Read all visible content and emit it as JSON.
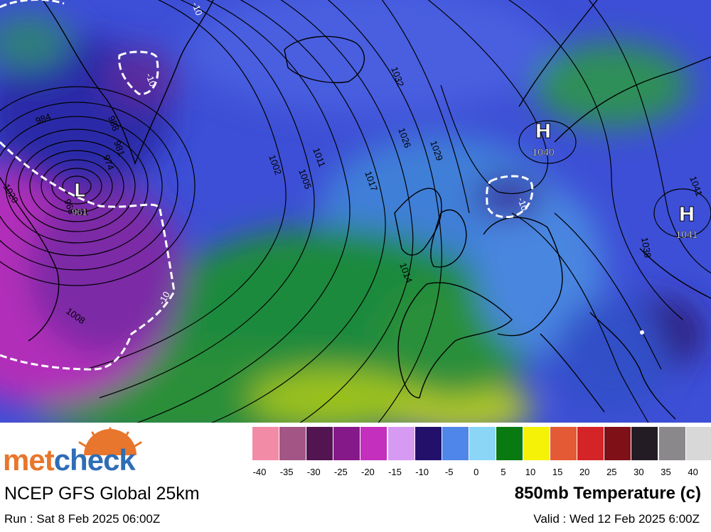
{
  "map": {
    "pressure_centres": [
      {
        "type": "L",
        "value": "961"
      },
      {
        "type": "H",
        "value": "1040"
      },
      {
        "type": "H",
        "value": "1041"
      }
    ],
    "isobar_labels": [
      "984",
      "988",
      "981",
      "974",
      "968",
      "961",
      "1002",
      "1005",
      "1011",
      "1017",
      "1026",
      "1029",
      "1032",
      "1014",
      "1008",
      "1038",
      "1041",
      "1020"
    ],
    "isotherm_labels": [
      "-10",
      "-10",
      "-10",
      "-10"
    ]
  },
  "legend": {
    "ticks": [
      "-40",
      "-35",
      "-30",
      "-25",
      "-20",
      "-15",
      "-10",
      "-5",
      "0",
      "5",
      "10",
      "15",
      "20",
      "25",
      "30",
      "35",
      "40"
    ],
    "colors": [
      "#f28ca6",
      "#a35585",
      "#521552",
      "#861989",
      "#c52fbe",
      "#d69af3",
      "#22106b",
      "#4f86ea",
      "#8bd6f6",
      "#097a12",
      "#f6f207",
      "#e45a34",
      "#d42427",
      "#7f1018",
      "#241c24",
      "#8a888a",
      "#d8d8d8"
    ]
  },
  "footer": {
    "brand_part1": "met",
    "brand_part2": "check",
    "model": "NCEP GFS Global 25km",
    "run": "Run : Sat 8 Feb 2025 06:00Z",
    "parameter": "850mb Temperature (c)",
    "valid": "Valid : Wed 12 Feb 2025 6:00Z"
  }
}
